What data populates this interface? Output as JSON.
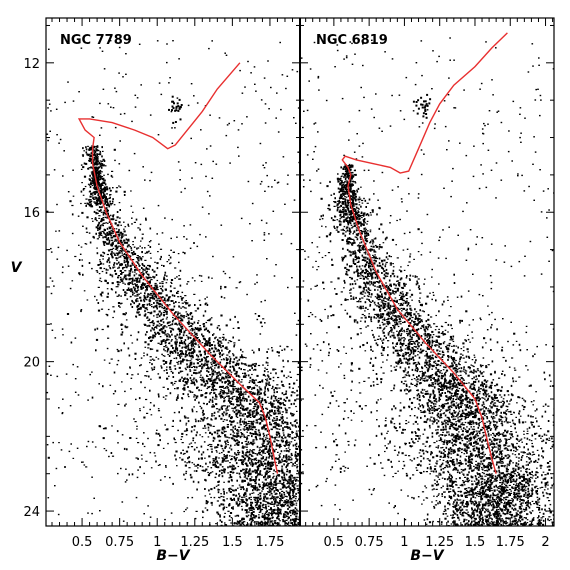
{
  "figure": {
    "ylabel": "V",
    "xlabel": "B−V"
  },
  "chart_data": [
    {
      "type": "scatter",
      "title": "NGC 7789",
      "xlabel": "B−V",
      "ylabel": "V",
      "xlim": [
        0.26,
        1.95
      ],
      "ylim": [
        24.4,
        10.8
      ],
      "y_inverted": true,
      "xticks": [
        0.5,
        0.75,
        1,
        1.25,
        1.5,
        1.75
      ],
      "xtick_labels": [
        "0.5",
        "0.75",
        "1",
        "1.25",
        "1.5",
        "1.75"
      ],
      "yticks": [
        12,
        16,
        20,
        24
      ],
      "ytick_labels": [
        "12",
        "16",
        "20",
        "24"
      ],
      "series": [
        {
          "kind": "isochrone",
          "color": "#e83030",
          "points": [
            [
              1.8,
              23.0
            ],
            [
              1.78,
              22.6
            ],
            [
              1.75,
              22.0
            ],
            [
              1.72,
              21.5
            ],
            [
              1.68,
              21.1
            ],
            [
              1.55,
              20.6
            ],
            [
              1.35,
              19.8
            ],
            [
              1.1,
              18.7
            ],
            [
              0.9,
              17.7
            ],
            [
              0.75,
              16.8
            ],
            [
              0.66,
              16.0
            ],
            [
              0.6,
              15.3
            ],
            [
              0.57,
              14.7
            ],
            [
              0.57,
              14.3
            ],
            [
              0.58,
              14.0
            ],
            [
              0.52,
              13.8
            ],
            [
              0.48,
              13.5
            ],
            [
              0.55,
              13.5
            ],
            [
              0.7,
              13.6
            ],
            [
              0.85,
              13.8
            ],
            [
              0.97,
              14.0
            ],
            [
              1.07,
              14.3
            ],
            [
              1.12,
              14.2
            ],
            [
              1.2,
              13.8
            ],
            [
              1.3,
              13.3
            ],
            [
              1.4,
              12.7
            ],
            [
              1.55,
              12.0
            ]
          ]
        },
        {
          "kind": "stars",
          "description_values": "main sequence broadening toward the faint red end",
          "ridge": [
            [
              0.58,
              14.2
            ],
            [
              0.6,
              15.0
            ],
            [
              0.66,
              16.0
            ],
            [
              0.75,
              16.8
            ],
            [
              0.9,
              17.7
            ],
            [
              1.1,
              18.7
            ],
            [
              1.35,
              19.8
            ],
            [
              1.55,
              20.6
            ],
            [
              1.68,
              21.1
            ],
            [
              1.75,
              22.0
            ],
            [
              1.8,
              23.0
            ]
          ],
          "clump": {
            "x": 1.12,
            "y": 13.2
          }
        }
      ]
    },
    {
      "type": "scatter",
      "title": "NGC 6819",
      "xlabel": "B−V",
      "ylabel": "V",
      "xlim": [
        0.26,
        2.06
      ],
      "ylim": [
        24.4,
        10.8
      ],
      "y_inverted": true,
      "xticks": [
        0.5,
        0.75,
        1,
        1.25,
        1.5,
        1.75,
        2
      ],
      "xtick_labels": [
        "0.5",
        "0.75",
        "1",
        "1.25",
        "1.5",
        "1.75",
        "2"
      ],
      "yticks": [
        12,
        16,
        20,
        24
      ],
      "ytick_labels": [],
      "series": [
        {
          "kind": "isochrone",
          "color": "#e83030",
          "points": [
            [
              1.65,
              23.0
            ],
            [
              1.62,
              22.6
            ],
            [
              1.58,
              22.0
            ],
            [
              1.55,
              21.5
            ],
            [
              1.5,
              21.0
            ],
            [
              1.35,
              20.3
            ],
            [
              1.15,
              19.5
            ],
            [
              0.95,
              18.6
            ],
            [
              0.8,
              17.6
            ],
            [
              0.68,
              16.5
            ],
            [
              0.62,
              15.8
            ],
            [
              0.6,
              15.3
            ],
            [
              0.62,
              15.0
            ],
            [
              0.6,
              14.8
            ],
            [
              0.56,
              14.6
            ],
            [
              0.58,
              14.5
            ],
            [
              0.66,
              14.6
            ],
            [
              0.78,
              14.7
            ],
            [
              0.9,
              14.8
            ],
            [
              0.97,
              14.95
            ],
            [
              1.03,
              14.9
            ],
            [
              1.1,
              14.3
            ],
            [
              1.18,
              13.6
            ],
            [
              1.25,
              13.1
            ],
            [
              1.35,
              12.6
            ],
            [
              1.5,
              12.1
            ],
            [
              1.62,
              11.6
            ],
            [
              1.73,
              11.2
            ]
          ]
        },
        {
          "kind": "stars",
          "description_values": "main sequence broadening toward the faint red end",
          "ridge": [
            [
              0.6,
              14.7
            ],
            [
              0.6,
              15.3
            ],
            [
              0.68,
              16.5
            ],
            [
              0.8,
              17.6
            ],
            [
              0.95,
              18.6
            ],
            [
              1.15,
              19.5
            ],
            [
              1.35,
              20.3
            ],
            [
              1.5,
              21.0
            ],
            [
              1.58,
              22.0
            ],
            [
              1.65,
              23.0
            ]
          ],
          "clump": {
            "x": 1.13,
            "y": 13.2
          }
        }
      ]
    }
  ]
}
